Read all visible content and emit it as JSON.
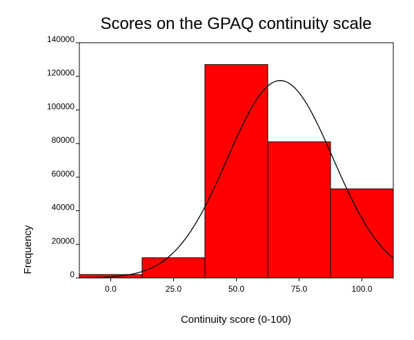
{
  "chart_data": {
    "type": "bar",
    "title": "Scores on the GPAQ continuity scale",
    "xlabel": "Continuity score (0-100)",
    "ylabel": "Frequency",
    "bins": [
      {
        "from": -12.5,
        "to": 12.5,
        "value": 2000
      },
      {
        "from": 12.5,
        "to": 37.5,
        "value": 12000
      },
      {
        "from": 37.5,
        "to": 62.5,
        "value": 127000
      },
      {
        "from": 62.5,
        "to": 87.5,
        "value": 81000
      },
      {
        "from": 87.5,
        "to": 112.5,
        "value": 53000
      }
    ],
    "xlim": [
      -12.5,
      112.5
    ],
    "ylim": [
      0,
      140000
    ],
    "x_ticks": [
      0,
      25,
      50,
      75,
      100
    ],
    "x_tick_labels": [
      "0.0",
      "25.0",
      "50.0",
      "75.0",
      "100.0"
    ],
    "y_ticks": [
      0,
      20000,
      40000,
      60000,
      80000,
      100000,
      120000,
      140000
    ],
    "y_tick_labels": [
      "0",
      "20000",
      "40000",
      "60000",
      "80000",
      "100000",
      "120000",
      "140000"
    ],
    "normal_curve": {
      "peak": 117500,
      "mean": 67.5,
      "sd": 21
    },
    "grid": false,
    "bar_color": "#ff0000",
    "line_color": "#000000"
  }
}
